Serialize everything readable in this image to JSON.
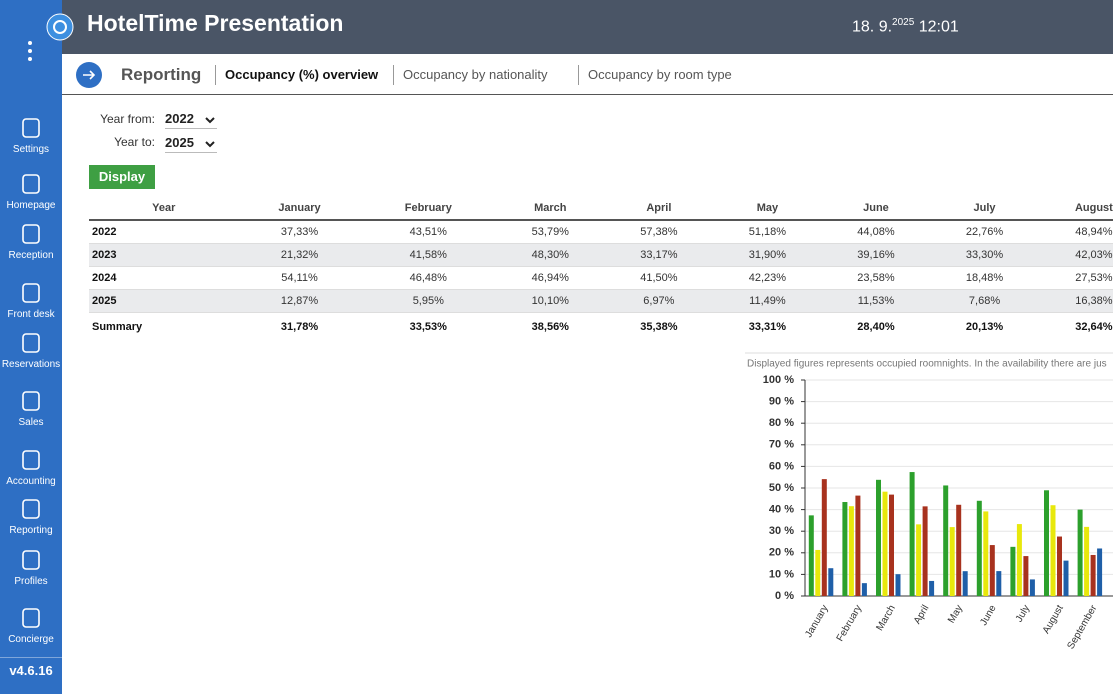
{
  "header": {
    "title": "HotelTime Presentation",
    "date": "18. 9.",
    "year": "2025",
    "time": "12:01"
  },
  "sidebar": {
    "items": [
      "Settings",
      "Homepage",
      "Reception",
      "Front desk",
      "Reservations",
      "Sales",
      "Accounting",
      "Reporting",
      "Profiles",
      "Concierge"
    ],
    "version": "v4.6.16"
  },
  "tabs": {
    "section": "Reporting",
    "items": [
      "Occupancy (%) overview",
      "Occupancy by nationality",
      "Occupancy by room type"
    ]
  },
  "filters": {
    "year_from_label": "Year from:",
    "year_from": "2022",
    "year_to_label": "Year to:",
    "year_to": "2025",
    "button": "Display"
  },
  "table": {
    "columns": [
      "Year",
      "January",
      "February",
      "March",
      "April",
      "May",
      "June",
      "July",
      "August"
    ],
    "rows": [
      [
        "2022",
        "37,33%",
        "43,51%",
        "53,79%",
        "57,38%",
        "51,18%",
        "44,08%",
        "22,76%",
        "48,94%"
      ],
      [
        "2023",
        "21,32%",
        "41,58%",
        "48,30%",
        "33,17%",
        "31,90%",
        "39,16%",
        "33,30%",
        "42,03%"
      ],
      [
        "2024",
        "54,11%",
        "46,48%",
        "46,94%",
        "41,50%",
        "42,23%",
        "23,58%",
        "18,48%",
        "27,53%"
      ],
      [
        "2025",
        "12,87%",
        "5,95%",
        "10,10%",
        "6,97%",
        "11,49%",
        "11,53%",
        "7,68%",
        "16,38%"
      ]
    ],
    "summary": [
      "Summary",
      "31,78%",
      "33,53%",
      "38,56%",
      "35,38%",
      "33,31%",
      "28,40%",
      "20,13%",
      "32,64%"
    ]
  },
  "chart_data": {
    "type": "bar",
    "note": "Displayed figures represents occupied roomnights. In the availability there are jus",
    "categories": [
      "January",
      "February",
      "March",
      "April",
      "May",
      "June",
      "July",
      "August",
      "September"
    ],
    "series": [
      {
        "color": "#2ca02c",
        "values": [
          37.33,
          43.51,
          53.79,
          57.38,
          51.18,
          44.08,
          22.76,
          48.94,
          40
        ]
      },
      {
        "color": "#e8e80c",
        "values": [
          21.32,
          41.58,
          48.3,
          33.17,
          31.9,
          39.16,
          33.3,
          42.03,
          32
        ]
      },
      {
        "color": "#a8321e",
        "values": [
          54.11,
          46.48,
          46.94,
          41.5,
          42.23,
          23.58,
          18.48,
          27.53,
          19
        ]
      },
      {
        "color": "#1f5fa8",
        "values": [
          12.87,
          5.95,
          10.1,
          6.97,
          11.49,
          11.53,
          7.68,
          16.38,
          22
        ]
      }
    ],
    "ylim": [
      0,
      100
    ],
    "yticks": [
      {
        "value": 0,
        "label": "0 %"
      },
      {
        "value": 10,
        "label": "10 %"
      },
      {
        "value": 20,
        "label": "20 %"
      },
      {
        "value": 30,
        "label": "30 %"
      },
      {
        "value": 40,
        "label": "40 %"
      },
      {
        "value": 50,
        "label": "50 %"
      },
      {
        "value": 60,
        "label": "60 %"
      },
      {
        "value": 70,
        "label": "70 %"
      },
      {
        "value": 80,
        "label": "80 %"
      },
      {
        "value": 90,
        "label": "90 %"
      },
      {
        "value": 100,
        "label": "100 %"
      }
    ],
    "grid": true
  }
}
